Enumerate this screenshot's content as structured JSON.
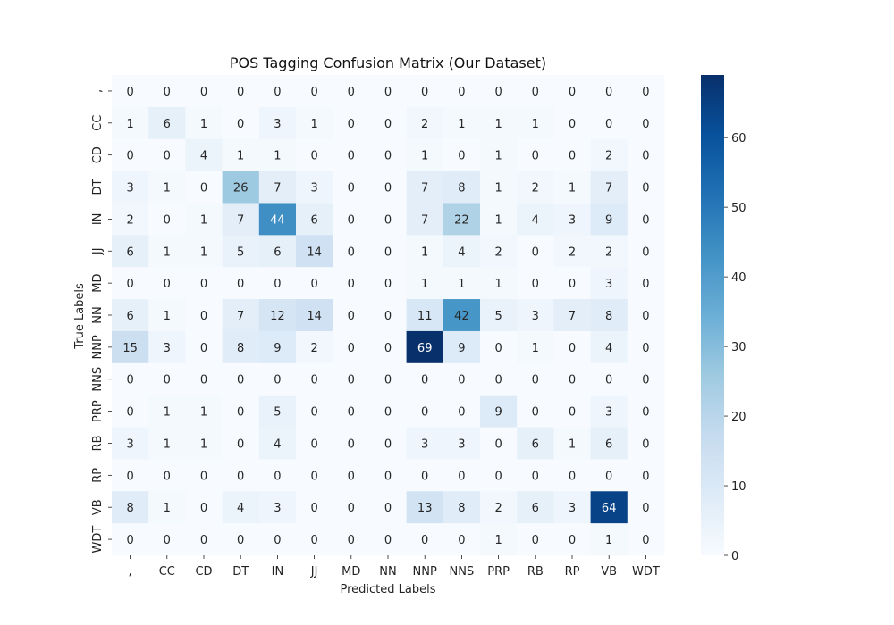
{
  "chart_data": {
    "type": "heatmap",
    "title": "POS Tagging Confusion Matrix (Our Dataset)",
    "xlabel": "Predicted Labels",
    "ylabel": "True Labels",
    "x_categories": [
      ",",
      "CC",
      "CD",
      "DT",
      "IN",
      "JJ",
      "MD",
      "NN",
      "NNP",
      "NNS",
      "PRP",
      "RB",
      "RP",
      "VB",
      "WDT"
    ],
    "y_categories": [
      ",",
      "CC",
      "CD",
      "DT",
      "IN",
      "JJ",
      "MD",
      "NN",
      "NNP",
      "NNS",
      "PRP",
      "RB",
      "RP",
      "VB",
      "WDT"
    ],
    "values": [
      [
        0,
        0,
        0,
        0,
        0,
        0,
        0,
        0,
        0,
        0,
        0,
        0,
        0,
        0,
        0
      ],
      [
        1,
        6,
        1,
        0,
        3,
        1,
        0,
        0,
        2,
        1,
        1,
        1,
        0,
        0,
        0
      ],
      [
        0,
        0,
        4,
        1,
        1,
        0,
        0,
        0,
        1,
        0,
        1,
        0,
        0,
        2,
        0
      ],
      [
        3,
        1,
        0,
        26,
        7,
        3,
        0,
        0,
        7,
        8,
        1,
        2,
        1,
        7,
        0
      ],
      [
        2,
        0,
        1,
        7,
        44,
        6,
        0,
        0,
        7,
        22,
        1,
        4,
        3,
        9,
        0
      ],
      [
        6,
        1,
        1,
        5,
        6,
        14,
        0,
        0,
        1,
        4,
        2,
        0,
        2,
        2,
        0
      ],
      [
        0,
        0,
        0,
        0,
        0,
        0,
        0,
        0,
        1,
        1,
        1,
        0,
        0,
        3,
        0
      ],
      [
        6,
        1,
        0,
        7,
        12,
        14,
        0,
        0,
        11,
        42,
        5,
        3,
        7,
        8,
        0
      ],
      [
        15,
        3,
        0,
        8,
        9,
        2,
        0,
        0,
        69,
        9,
        0,
        1,
        0,
        4,
        0
      ],
      [
        0,
        0,
        0,
        0,
        0,
        0,
        0,
        0,
        0,
        0,
        0,
        0,
        0,
        0,
        0
      ],
      [
        0,
        1,
        1,
        0,
        5,
        0,
        0,
        0,
        0,
        0,
        9,
        0,
        0,
        3,
        0
      ],
      [
        3,
        1,
        1,
        0,
        4,
        0,
        0,
        0,
        3,
        3,
        0,
        6,
        1,
        6,
        0
      ],
      [
        0,
        0,
        0,
        0,
        0,
        0,
        0,
        0,
        0,
        0,
        0,
        0,
        0,
        0,
        0
      ],
      [
        8,
        1,
        0,
        4,
        3,
        0,
        0,
        0,
        13,
        8,
        2,
        6,
        3,
        64,
        0
      ],
      [
        0,
        0,
        0,
        0,
        0,
        0,
        0,
        0,
        0,
        0,
        1,
        0,
        0,
        1,
        0
      ]
    ],
    "colormap": "Blues",
    "vmin": 0,
    "vmax": 69,
    "colorbar_ticks": [
      0,
      10,
      20,
      30,
      40,
      50,
      60
    ],
    "annotations": true,
    "grid": false
  }
}
